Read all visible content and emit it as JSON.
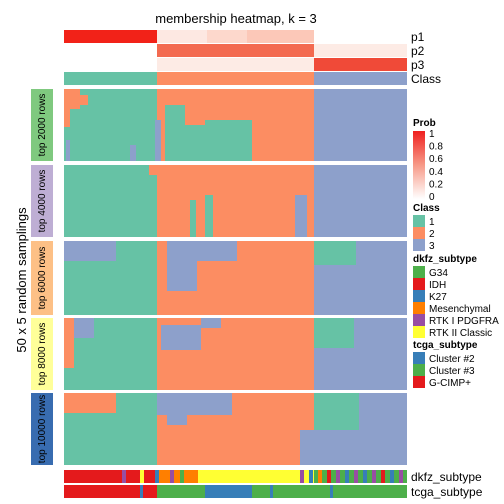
{
  "chart_data": {
    "type": "heatmap",
    "title": "membership heatmap, k = 3",
    "ylabel": "50 x 5 random samplings",
    "annotation_rows": [
      "p1",
      "p2",
      "p3",
      "Class"
    ],
    "bottom_annotations": [
      "dkfz_subtype",
      "tcga_subtype"
    ],
    "groups": [
      "top 2000 rows",
      "top 4000 rows",
      "top 6000 rows",
      "top 8000 rows",
      "top 10000 rows"
    ],
    "group_colors": [
      "#7fc97f",
      "#beaed4",
      "#fdc086",
      "#ffff99",
      "#386cb0"
    ],
    "classes": [
      "1",
      "2",
      "3"
    ],
    "class_colors": [
      "#66c2a5",
      "#fc8d62",
      "#8da0cb"
    ],
    "legends": {
      "prob": {
        "title": "Prob",
        "ticks": [
          "1",
          "0.8",
          "0.6",
          "0.4",
          "0.2",
          "0"
        ]
      },
      "class": {
        "title": "Class",
        "items": [
          {
            "label": "1",
            "color": "#66c2a5"
          },
          {
            "label": "2",
            "color": "#fc8d62"
          },
          {
            "label": "3",
            "color": "#8da0cb"
          }
        ]
      },
      "dkfz_subtype": {
        "title": "dkfz_subtype",
        "items": [
          {
            "label": "G34",
            "color": "#4daf4a"
          },
          {
            "label": "IDH",
            "color": "#e41a1c"
          },
          {
            "label": "K27",
            "color": "#377eb8"
          },
          {
            "label": "Mesenchymal",
            "color": "#ff7f00"
          },
          {
            "label": "RTK I PDGFRA",
            "color": "#984ea3"
          },
          {
            "label": "RTK II Classic",
            "color": "#ffff33"
          }
        ]
      },
      "tcga_subtype": {
        "title": "tcga_subtype",
        "items": [
          {
            "label": "Cluster #2",
            "color": "#377eb8"
          },
          {
            "label": "Cluster #3",
            "color": "#4daf4a"
          },
          {
            "label": "G-CIMP+",
            "color": "#e41a1c"
          }
        ]
      }
    },
    "column_segments": [
      {
        "class": "1",
        "fraction": 0.27
      },
      {
        "class": "2",
        "fraction": 0.73
      },
      {
        "class": "3",
        "fraction": 1.0
      }
    ]
  }
}
